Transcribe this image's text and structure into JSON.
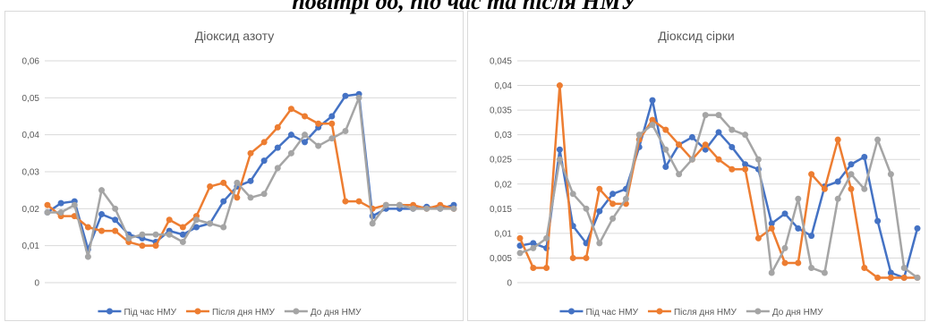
{
  "heading": "повітрі до, під час та після НМУ",
  "chart_data": [
    {
      "type": "line",
      "title": "Діоксид азоту",
      "ylim": [
        0,
        0.06
      ],
      "yticks": [
        0,
        {
          "value": 0.01,
          "label": "0,01"
        },
        {
          "value": 0.02,
          "label": "0,02"
        },
        {
          "value": 0.03,
          "label": "0,03"
        },
        {
          "value": 0.04,
          "label": "0,04"
        },
        {
          "value": 0.05,
          "label": "0,05"
        },
        {
          "value": 0.06,
          "label": "0,06"
        }
      ],
      "grid": true,
      "legend": "bottom",
      "series": [
        {
          "name": "Під час НМУ",
          "color": "#4472c4",
          "values": [
            0.019,
            0.0215,
            0.022,
            0.009,
            0.0185,
            0.017,
            0.013,
            0.012,
            0.011,
            0.014,
            0.013,
            0.015,
            0.016,
            0.022,
            0.026,
            0.0275,
            0.033,
            0.0365,
            0.04,
            0.038,
            0.042,
            0.045,
            0.0505,
            0.051,
            0.018,
            0.02,
            0.02,
            0.02,
            0.0205,
            0.02,
            0.021
          ]
        },
        {
          "name": "Після дня НМУ",
          "color": "#ed7d31",
          "values": [
            0.021,
            0.018,
            0.018,
            0.015,
            0.014,
            0.014,
            0.011,
            0.01,
            0.01,
            0.017,
            0.015,
            0.018,
            0.026,
            0.027,
            0.023,
            0.035,
            0.038,
            0.042,
            0.047,
            0.045,
            0.043,
            0.043,
            0.022,
            0.022,
            0.02,
            0.021,
            0.021,
            0.021,
            0.02,
            0.021,
            0.02
          ]
        },
        {
          "name": "До дня НМУ",
          "color": "#a5a5a5",
          "values": [
            0.019,
            0.019,
            0.021,
            0.007,
            0.025,
            0.02,
            0.012,
            0.013,
            0.013,
            0.013,
            0.011,
            0.017,
            0.016,
            0.015,
            0.027,
            0.023,
            0.024,
            0.031,
            0.035,
            0.04,
            0.037,
            0.039,
            0.041,
            0.05,
            0.016,
            0.021,
            0.021,
            0.02,
            0.02,
            0.02,
            0.02
          ]
        }
      ]
    },
    {
      "type": "line",
      "title": "Діоксид сірки",
      "ylim": [
        0,
        0.045
      ],
      "yticks": [
        0,
        {
          "value": 0.005,
          "label": "0,005"
        },
        {
          "value": 0.01,
          "label": "0,01"
        },
        {
          "value": 0.015,
          "label": "0,015"
        },
        {
          "value": 0.02,
          "label": "0,02"
        },
        {
          "value": 0.025,
          "label": "0,025"
        },
        {
          "value": 0.03,
          "label": "0,03"
        },
        {
          "value": 0.035,
          "label": "0,035"
        },
        {
          "value": 0.04,
          "label": "0,04"
        },
        {
          "value": 0.045,
          "label": "0,045"
        }
      ],
      "grid": true,
      "legend": "bottom",
      "series": [
        {
          "name": "Під час НМУ",
          "color": "#4472c4",
          "values": [
            0.0075,
            0.008,
            0.007,
            0.027,
            0.0115,
            0.008,
            0.0145,
            0.018,
            0.019,
            0.0275,
            0.037,
            0.0235,
            0.028,
            0.0295,
            0.027,
            0.0305,
            0.0275,
            0.024,
            0.023,
            0.012,
            0.014,
            0.011,
            0.0095,
            0.0195,
            0.0205,
            0.024,
            0.0255,
            0.0125,
            0.002,
            0.001,
            0.011
          ]
        },
        {
          "name": "Після дня НМУ",
          "color": "#ed7d31",
          "values": [
            0.009,
            0.003,
            0.003,
            0.04,
            0.005,
            0.005,
            0.019,
            0.016,
            0.016,
            0.029,
            0.033,
            0.031,
            0.028,
            0.025,
            0.028,
            0.025,
            0.023,
            0.023,
            0.009,
            0.011,
            0.004,
            0.004,
            0.022,
            0.019,
            0.029,
            0.019,
            0.003,
            0.001,
            0.001,
            0.001,
            0.001
          ]
        },
        {
          "name": "До дня НМУ",
          "color": "#a5a5a5",
          "values": [
            0.006,
            0.007,
            0.009,
            0.025,
            0.018,
            0.015,
            0.008,
            0.013,
            0.017,
            0.03,
            0.032,
            0.027,
            0.022,
            0.025,
            0.034,
            0.034,
            0.031,
            0.03,
            0.025,
            0.002,
            0.007,
            0.017,
            0.003,
            0.002,
            0.017,
            0.022,
            0.019,
            0.029,
            0.022,
            0.003,
            0.001
          ]
        }
      ]
    }
  ]
}
